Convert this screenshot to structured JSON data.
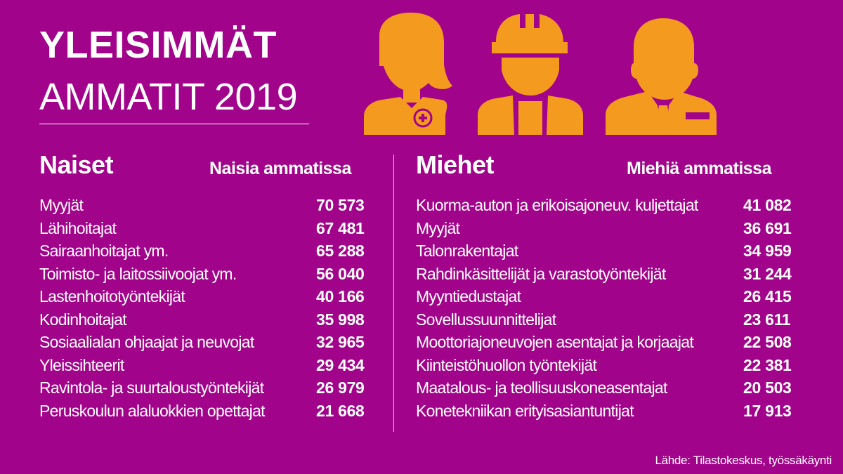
{
  "title": {
    "line1": "YLEISIMMÄT",
    "line2": "AMMATIT 2019"
  },
  "colors": {
    "background": "#a1038a",
    "icon": "#f39a1f",
    "text": "#ffffff"
  },
  "icons": [
    "nurse-icon",
    "construction-worker-icon",
    "businessman-icon"
  ],
  "women": {
    "heading": "Naiset",
    "subheading": "Naisia ammatissa",
    "rows": [
      {
        "name": "Myyjät",
        "value": "70 573"
      },
      {
        "name": "Lähihoitajat",
        "value": "67 481"
      },
      {
        "name": "Sairaanhoitajat ym.",
        "value": "65 288"
      },
      {
        "name": "Toimisto- ja laitossiivoojat ym.",
        "value": "56 040"
      },
      {
        "name": "Lastenhoitotyöntekijät",
        "value": "40 166"
      },
      {
        "name": "Kodinhoitajat",
        "value": "35 998"
      },
      {
        "name": "Sosiaalialan ohjaajat ja neuvojat",
        "value": "32 965"
      },
      {
        "name": "Yleissihteerit",
        "value": "29 434"
      },
      {
        "name": "Ravintola- ja suurtaloustyöntekijät",
        "value": "26 979"
      },
      {
        "name": "Peruskoulun alaluokkien opettajat",
        "value": "21 668"
      }
    ]
  },
  "men": {
    "heading": "Miehet",
    "subheading": "Miehiä ammatissa",
    "rows": [
      {
        "name": "Kuorma-auton ja erikoisajoneuv. kuljettajat",
        "value": "41 082"
      },
      {
        "name": "Myyjät",
        "value": "36 691"
      },
      {
        "name": "Talonrakentajat",
        "value": "34 959"
      },
      {
        "name": "Rahdinkäsittelijät ja varastotyöntekijät",
        "value": "31 244"
      },
      {
        "name": "Myyntiedustajat",
        "value": "26 415"
      },
      {
        "name": "Sovellussuunnittelijat",
        "value": "23 611"
      },
      {
        "name": "Moottoriajoneuvojen asentajat ja korjaajat",
        "value": "22 508"
      },
      {
        "name": "Kiinteistöhuollon työntekijät",
        "value": "22 381"
      },
      {
        "name": "Maatalous- ja teollisuuskoneasentajat",
        "value": "20 503"
      },
      {
        "name": "Konetekniikan erityisasiantuntijat",
        "value": "17 913"
      }
    ]
  },
  "source": "Lähde: Tilastokeskus, työssäkäynti"
}
